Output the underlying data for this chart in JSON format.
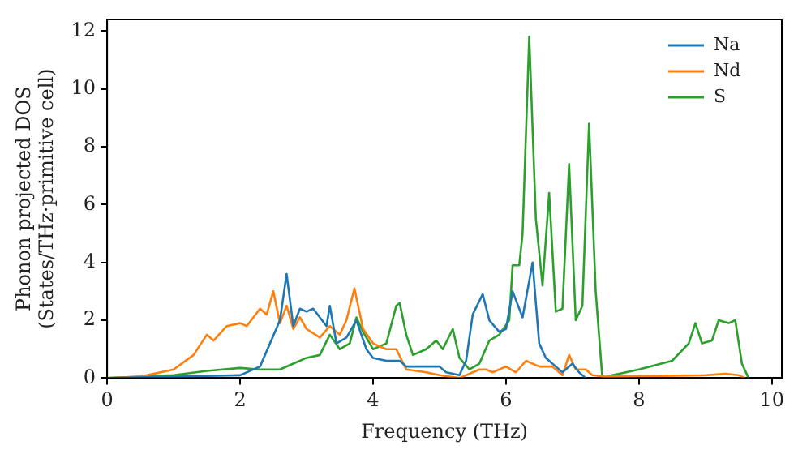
{
  "chart_data": {
    "type": "line",
    "xlabel": "Frequency (THz)",
    "ylabel": "Phonon projected DOS\n(States/THz·primitive cell)",
    "xlim": [
      0,
      10.15
    ],
    "ylim": [
      0,
      12.4
    ],
    "xticks": [
      0,
      2,
      4,
      6,
      8,
      10
    ],
    "yticks": [
      0,
      2,
      4,
      6,
      8,
      10,
      12
    ],
    "grid": false,
    "legend": "top right",
    "marker": "none",
    "line_style": "solid",
    "series": [
      {
        "name": "Na",
        "color": "#1f77b4",
        "x": [
          0,
          1,
          2,
          2.3,
          2.6,
          2.7,
          2.8,
          2.9,
          3.0,
          3.1,
          3.2,
          3.3,
          3.35,
          3.45,
          3.6,
          3.75,
          3.9,
          4.0,
          4.2,
          4.4,
          4.5,
          4.8,
          5.0,
          5.1,
          5.3,
          5.4,
          5.5,
          5.65,
          5.75,
          5.9,
          6.0,
          6.1,
          6.25,
          6.4,
          6.5,
          6.6,
          6.75,
          6.85,
          7.0,
          7.1,
          7.2
        ],
        "values": [
          0,
          0.05,
          0.1,
          0.4,
          2,
          3.6,
          1.8,
          2.4,
          2.3,
          2.4,
          2.1,
          1.8,
          2.5,
          1.2,
          1.4,
          2,
          1,
          0.7,
          0.6,
          0.6,
          0.4,
          0.4,
          0.4,
          0.2,
          0.1,
          0.6,
          2.2,
          2.9,
          2,
          1.6,
          1.7,
          3,
          2.1,
          4,
          1.2,
          0.7,
          0.4,
          0.2,
          0.5,
          0.2,
          0
        ]
      },
      {
        "name": "Nd",
        "color": "#ff7f0e",
        "x": [
          0,
          0.5,
          1,
          1.3,
          1.5,
          1.6,
          1.8,
          2.0,
          2.1,
          2.3,
          2.4,
          2.5,
          2.6,
          2.7,
          2.8,
          2.9,
          3.0,
          3.2,
          3.35,
          3.5,
          3.6,
          3.72,
          3.85,
          4.0,
          4.2,
          4.35,
          4.5,
          4.8,
          5.0,
          5.3,
          5.6,
          5.7,
          5.8,
          6.0,
          6.15,
          6.3,
          6.5,
          6.7,
          6.85,
          6.95,
          7.05,
          7.2,
          7.3,
          7.5,
          9.0,
          9.3,
          9.5,
          9.6
        ],
        "values": [
          0,
          0.05,
          0.3,
          0.8,
          1.5,
          1.3,
          1.8,
          1.9,
          1.8,
          2.4,
          2.2,
          3,
          1.9,
          2.5,
          1.7,
          2.1,
          1.7,
          1.4,
          1.8,
          1.5,
          2,
          3.1,
          1.7,
          1.2,
          1,
          1,
          0.3,
          0.2,
          0.1,
          0,
          0.3,
          0.3,
          0.2,
          0.4,
          0.2,
          0.6,
          0.4,
          0.4,
          0.1,
          0.8,
          0.3,
          0.3,
          0.1,
          0.05,
          0.1,
          0.15,
          0.1,
          0
        ]
      },
      {
        "name": "S",
        "color": "#2ca02c",
        "x": [
          0,
          1.0,
          1.5,
          2.0,
          2.3,
          2.6,
          2.8,
          3.0,
          3.2,
          3.35,
          3.5,
          3.65,
          3.75,
          3.85,
          4.0,
          4.2,
          4.35,
          4.4,
          4.5,
          4.6,
          4.8,
          4.95,
          5.05,
          5.2,
          5.3,
          5.45,
          5.6,
          5.75,
          5.9,
          6.05,
          6.1,
          6.2,
          6.25,
          6.35,
          6.45,
          6.55,
          6.65,
          6.75,
          6.85,
          6.95,
          7.05,
          7.15,
          7.25,
          7.35,
          7.45,
          7.6,
          8.0,
          8.5,
          8.75,
          8.85,
          8.95,
          9.1,
          9.2,
          9.35,
          9.45,
          9.55,
          9.65
        ],
        "values": [
          0,
          0.1,
          0.25,
          0.35,
          0.3,
          0.3,
          0.5,
          0.7,
          0.8,
          1.5,
          1,
          1.2,
          2.1,
          1.6,
          1,
          1.2,
          2.5,
          2.6,
          1.5,
          0.8,
          1,
          1.3,
          1,
          1.7,
          0.7,
          0.3,
          0.5,
          1.3,
          1.5,
          2,
          3.9,
          3.9,
          5,
          11.8,
          5.5,
          3.2,
          6.4,
          2.3,
          2.4,
          7.4,
          2,
          2.5,
          8.8,
          3,
          0,
          0.1,
          0.3,
          0.6,
          1.2,
          1.9,
          1.2,
          1.3,
          2,
          1.9,
          2,
          0.5,
          0
        ]
      }
    ]
  }
}
